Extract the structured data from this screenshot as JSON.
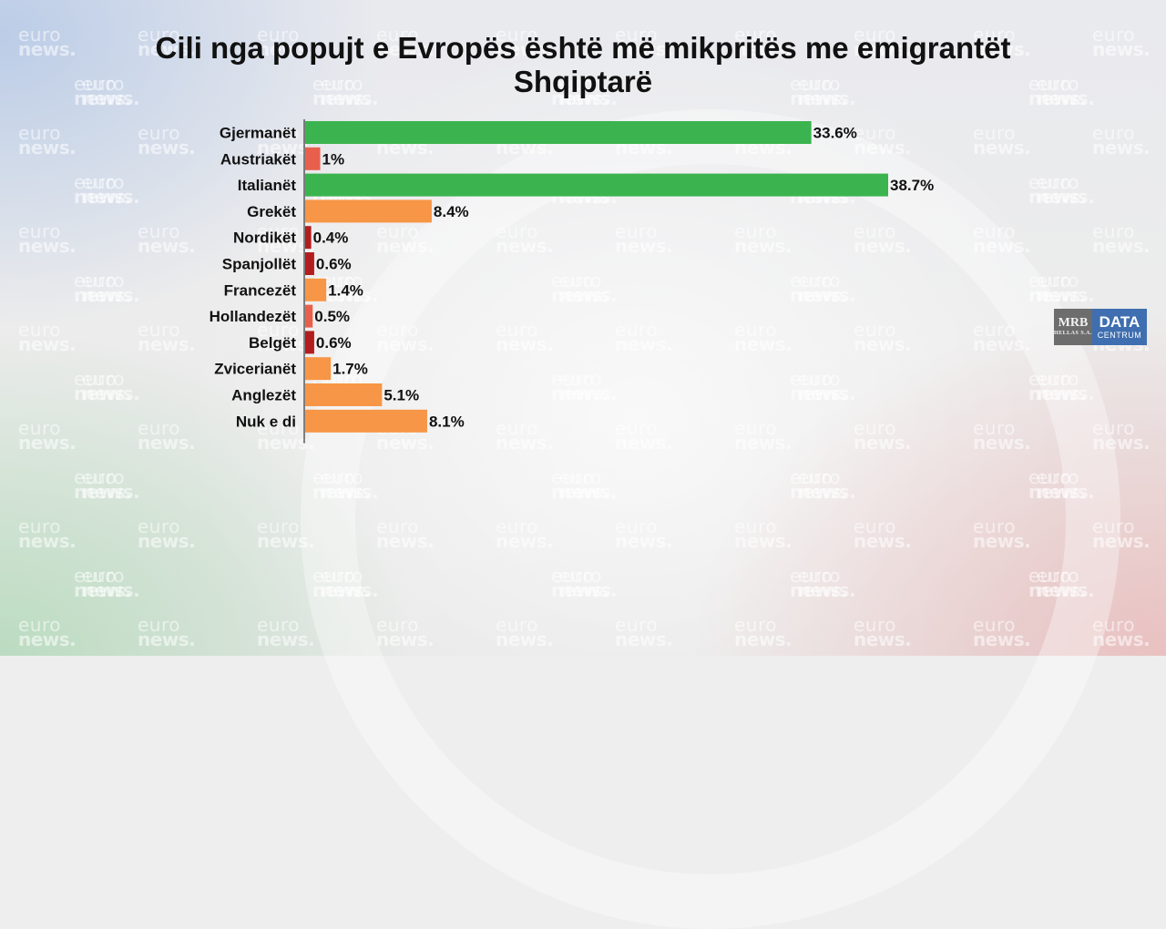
{
  "title": "Cili nga popujt e Evropës është më mikpritës me emigrantët Shqiptarë",
  "watermark": {
    "line1": "euro",
    "line2": "news."
  },
  "logo": {
    "mrb": "MRB",
    "mrb_sub": "HELLAS S.A.",
    "data": "DATA",
    "centrum": "CENTRUM"
  },
  "colors": {
    "green": "#3bb44f",
    "orange": "#f79646",
    "coral": "#e8604c",
    "darkred": "#b21e1e"
  },
  "chart_data": {
    "type": "bar",
    "orientation": "horizontal",
    "title": "Cili nga popujt e Evropës është më mikpritës me emigrantët Shqiptarë",
    "categories": [
      "Gjermanët",
      "Austriakët",
      "Italianët",
      "Grekët",
      "Nordikët",
      "Spanjollët",
      "Francezët",
      "Hollandezët",
      "Belgët",
      "Zvicerianët",
      "Anglezët",
      "Nuk e di"
    ],
    "values": [
      33.6,
      1,
      38.7,
      8.4,
      0.4,
      0.6,
      1.4,
      0.5,
      0.6,
      1.7,
      5.1,
      8.1
    ],
    "value_labels": [
      "33.6%",
      "1%",
      "38.7%",
      "8.4%",
      "0.4%",
      "0.6%",
      "1.4%",
      "0.5%",
      "0.6%",
      "1.7%",
      "5.1%",
      "8.1%"
    ],
    "bar_colors": [
      "#3bb44f",
      "#e8604c",
      "#3bb44f",
      "#f79646",
      "#b21e1e",
      "#b21e1e",
      "#f79646",
      "#e8604c",
      "#b21e1e",
      "#f79646",
      "#f79646",
      "#f79646"
    ],
    "xlim": [
      0,
      38.7
    ],
    "grid": false,
    "legend": "none"
  }
}
